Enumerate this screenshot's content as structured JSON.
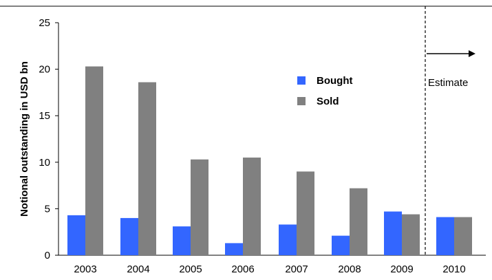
{
  "chart_data": {
    "type": "bar",
    "title": "",
    "categories": [
      "2003",
      "2004",
      "2005",
      "2006",
      "2007",
      "2008",
      "2009",
      "2010"
    ],
    "series": [
      {
        "name": "Bought",
        "color": "#3366ff",
        "values": [
          4.3,
          4.0,
          3.1,
          1.3,
          3.3,
          2.1,
          4.7,
          4.1
        ]
      },
      {
        "name": "Sold",
        "color": "#808080",
        "values": [
          20.3,
          18.6,
          10.3,
          10.5,
          9.0,
          7.2,
          4.4,
          4.1
        ]
      }
    ],
    "xlabel": "",
    "ylabel": "Notional outstanding in USD bn",
    "ylim": [
      0,
      25
    ],
    "yticks": [
      0,
      5,
      10,
      15,
      20,
      25
    ],
    "legend_position": "upper-middle",
    "grid": false,
    "annotations": [
      {
        "text": "Estimate",
        "arrow": "right",
        "divider": "dashed line before 2010"
      }
    ]
  }
}
